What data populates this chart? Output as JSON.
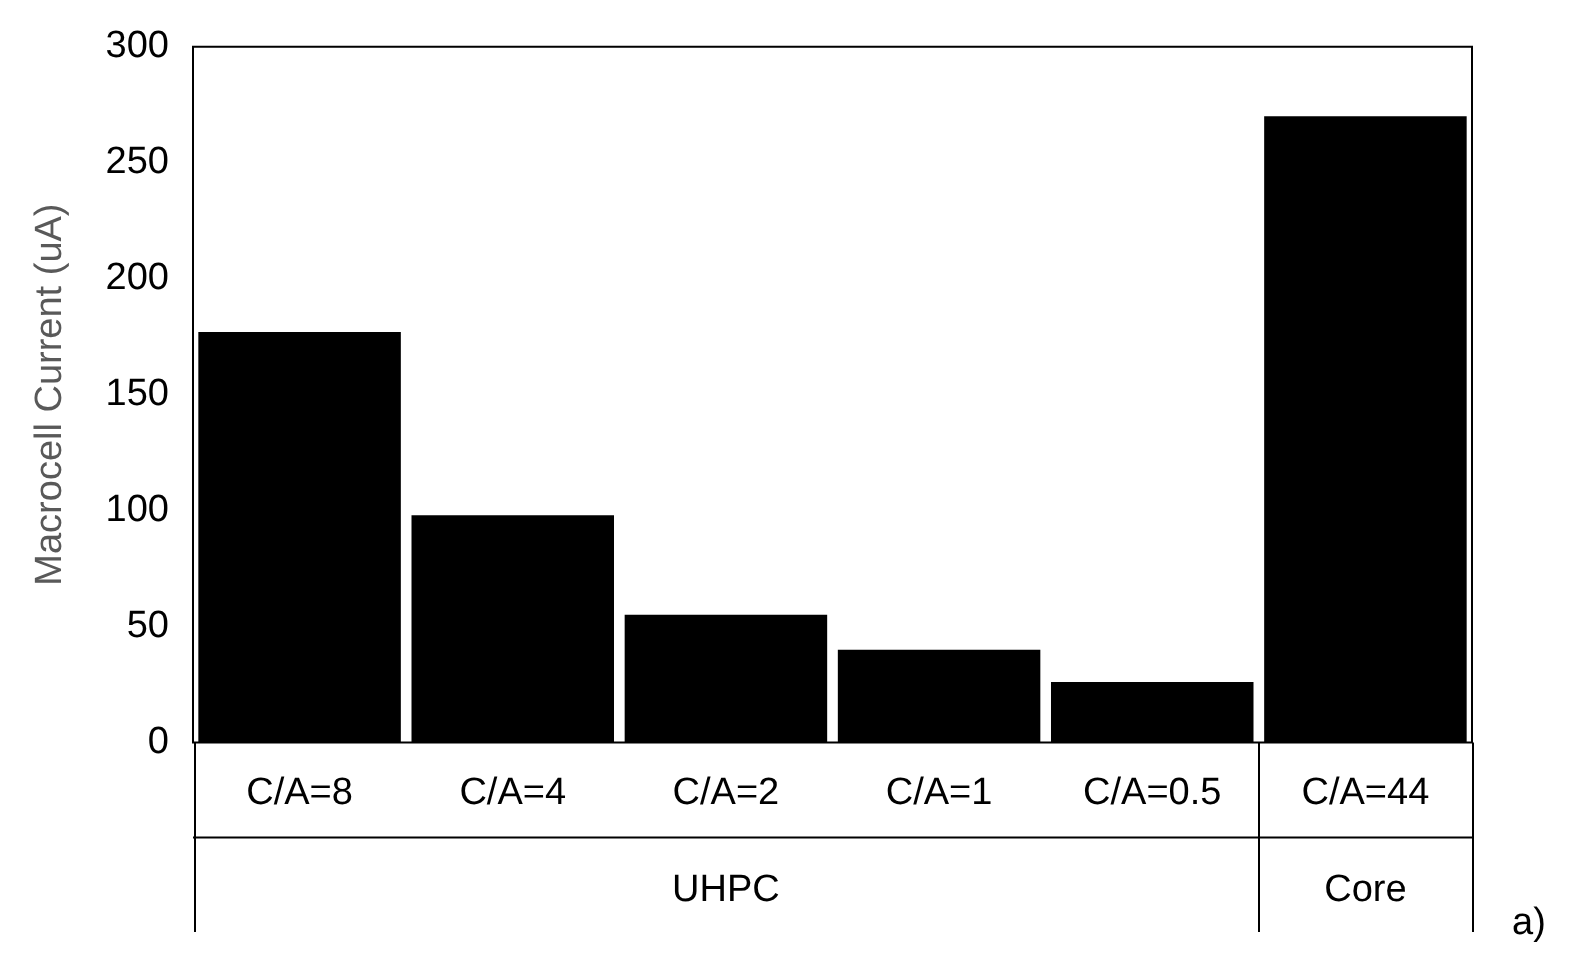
{
  "chart_data": {
    "type": "bar",
    "ylabel": "Macrocell Current (uA)",
    "categories": [
      "C/A=8",
      "C/A=4",
      "C/A=2",
      "C/A=1",
      "C/A=0.5",
      "C/A=44"
    ],
    "values": [
      177,
      98,
      55,
      40,
      26,
      270
    ],
    "color": "#000000",
    "ylim": [
      0,
      300
    ],
    "yticks": [
      0,
      50,
      100,
      150,
      200,
      250,
      300
    ],
    "grid": false,
    "legend": false,
    "annotations": [
      "UHPC",
      "Core",
      "a)"
    ]
  }
}
